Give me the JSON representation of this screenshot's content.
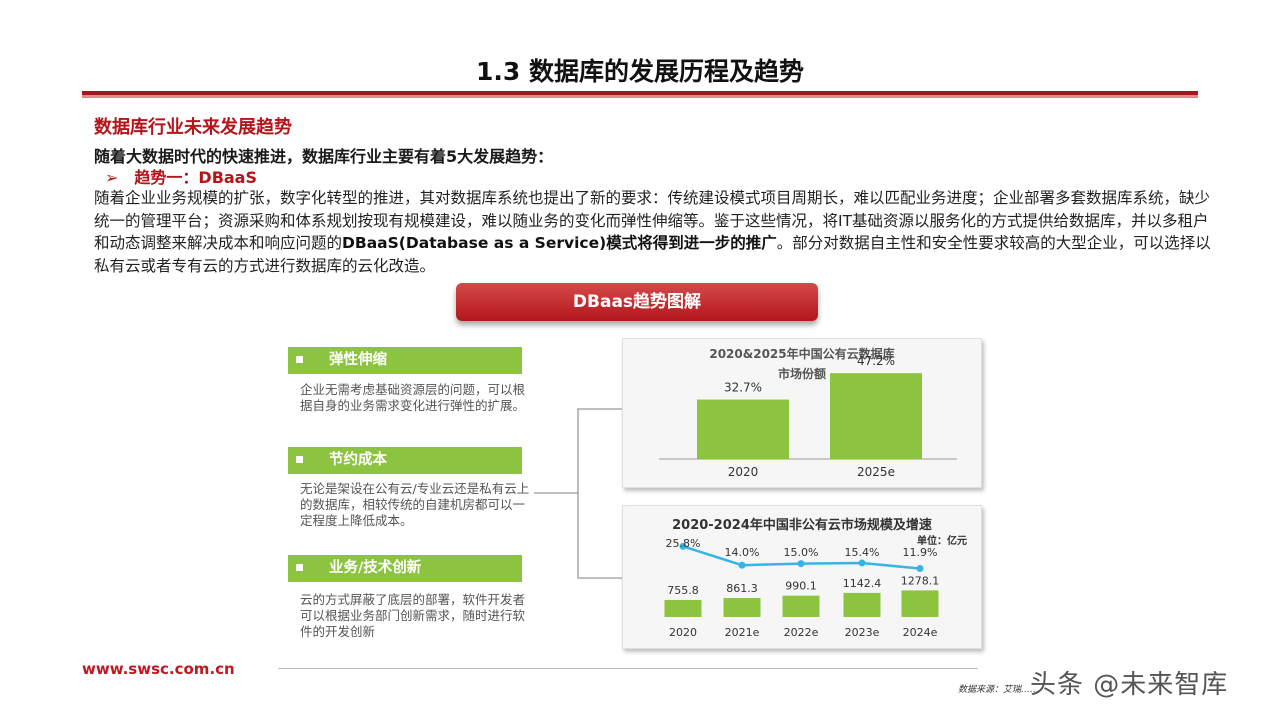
{
  "header": {
    "title": "1.3 数据库的发展历程及趋势"
  },
  "content": {
    "section_heading": "数据库行业未来发展趋势",
    "intro": "随着大数据时代的快速推进，数据库行业主要有着5大发展趋势：",
    "trend_label": "趋势一：DBaaS",
    "trend_arrow": "➢",
    "paragraph_part1": "随着企业业务规模的扩张，数字化转型的推进，其对数据库系统也提出了新的要求：传统建设模式项目周期长，难以匹配业务进度；企业部署多套数据库系统，缺少统一的管理平台；资源采购和体系规划按现有规模建设，难以随业务的变化而弹性伸缩等。鉴于这些情况，将IT基础资源以服务化的方式提供给数据库，并以多租户和动态调整来解决成本和响应问题的",
    "paragraph_bold": "DBaaS(Database as a Service)模式将得到进一步的推广",
    "paragraph_part2": "。部分对数据自主性和安全性要求较高的大型企业，可以选择以私有云或者专有云的方式进行数据库的云化改造。"
  },
  "diagram": {
    "banner": "DBaas趋势图解",
    "features": [
      {
        "title": "弹性伸缩",
        "desc": "企业无需考虑基础资源层的问题，可以根据自身的业务需求变化进行弹性的扩展。"
      },
      {
        "title": "节约成本",
        "desc": "无论是架设在公有云/专业云还是私有云上的数据库，相较传统的自建机房都可以一定程度上降低成本。"
      },
      {
        "title": "业务/技术创新",
        "desc": "云的方式屏蔽了底层的部署，软件开发者可以根据业务部门创新需求，随时进行软件的开发创新"
      }
    ]
  },
  "chart_data": [
    {
      "type": "bar",
      "title": "2020&2025年中国公有云数据库",
      "subtitle": "市场份额",
      "categories": [
        "2020",
        "2025e"
      ],
      "values": [
        32.7,
        47.2
      ],
      "value_labels": [
        "32.7%",
        "47.2%"
      ],
      "ylim": [
        0,
        55
      ],
      "bar_color": "#8dc43f"
    },
    {
      "type": "bar",
      "title": "2020-2024年中国非公有云市场规模及增速",
      "unit_label": "单位：亿元",
      "categories": [
        "2020",
        "2021e",
        "2022e",
        "2023e",
        "2024e"
      ],
      "series": [
        {
          "values": [
            755.8,
            861.3,
            990.1,
            1142.4,
            1278.1
          ],
          "labels": [
            "755.8",
            "861.3",
            "990.1",
            "1142.4",
            "1278.1"
          ],
          "color": "#8dc43f",
          "kind": "bar"
        },
        {
          "values": [
            25.8,
            14.0,
            15.0,
            15.4,
            11.9
          ],
          "labels": [
            "25.8%",
            "14.0%",
            "15.0%",
            "15.4%",
            "11.9%"
          ],
          "color": "#35b5e5",
          "kind": "line"
        }
      ]
    }
  ],
  "footer": {
    "website": "www.swsc.com.cn",
    "source": "数据来源：艾瑞……",
    "watermark": "头条 @未来智库"
  },
  "colors": {
    "accent_red": "#b5141b",
    "green": "#8dc43f",
    "line_blue": "#35b5e5"
  }
}
